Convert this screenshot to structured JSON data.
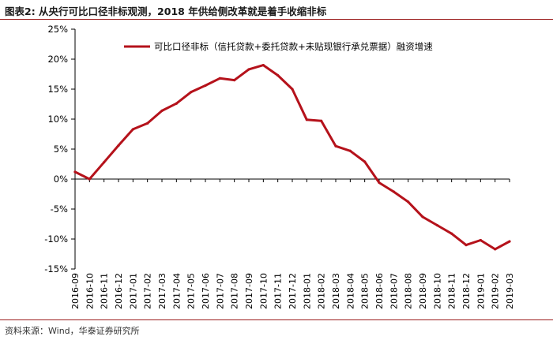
{
  "figure": {
    "title": "图表2:  从央行可比口径非标观测，2018 年供给侧改革就是着手收缩非标",
    "source": "资料来源：Wind，华泰证券研究所"
  },
  "colors": {
    "series": "#b5121b",
    "rule": "#9b1c1c",
    "axis": "#000000"
  },
  "chart_data": {
    "type": "line",
    "title": "",
    "xlabel": "",
    "ylabel": "",
    "ylim": [
      -15,
      25
    ],
    "yticks": [
      25,
      20,
      15,
      10,
      5,
      0,
      -5,
      -10,
      -15
    ],
    "ytick_labels": [
      "25%",
      "20%",
      "15%",
      "10%",
      "5%",
      "0%",
      "-5%",
      "-10%",
      "-15%"
    ],
    "legend_position": "top-center",
    "grid": false,
    "x": [
      "2016-09",
      "2016-10",
      "2016-11",
      "2016-12",
      "2017-01",
      "2017-02",
      "2017-03",
      "2017-04",
      "2017-05",
      "2017-06",
      "2017-07",
      "2017-08",
      "2017-09",
      "2017-10",
      "2017-11",
      "2017-12",
      "2018-01",
      "2018-02",
      "2018-03",
      "2018-04",
      "2018-05",
      "2018-06",
      "2018-07",
      "2018-08",
      "2018-09",
      "2018-10",
      "2018-11",
      "2018-12",
      "2019-01",
      "2019-02",
      "2019-03"
    ],
    "series": [
      {
        "name": "可比口径非标（信托贷款+委托贷款+未贴现银行承兑票据）融资增速",
        "values": [
          1.2,
          0.0,
          2.8,
          5.6,
          8.3,
          9.3,
          11.4,
          12.6,
          14.5,
          15.6,
          16.8,
          16.5,
          18.3,
          19.0,
          17.3,
          15.0,
          9.9,
          9.7,
          5.5,
          4.7,
          2.9,
          -0.6,
          -2.1,
          -3.8,
          -6.3,
          -7.7,
          -9.1,
          -11.0,
          -10.2,
          -11.7,
          -10.4
        ]
      }
    ]
  }
}
